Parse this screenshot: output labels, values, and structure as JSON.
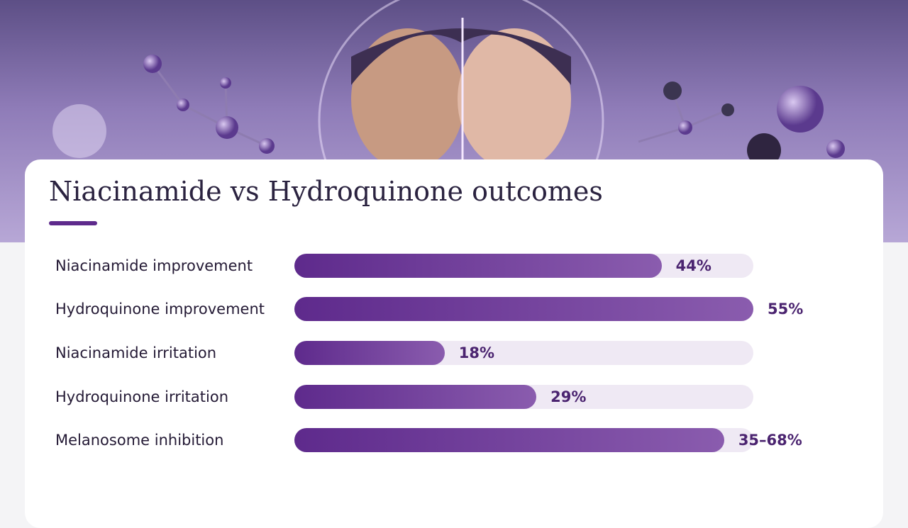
{
  "chart_data": {
    "type": "bar",
    "orientation": "horizontal",
    "title": "Niacinamide vs Hydroquinone outcomes",
    "categories": [
      "Niacinamide improvement",
      "Hydroquinone improvement",
      "Niacinamide irritation",
      "Hydroquinone irritation",
      "Melanosome inhibition"
    ],
    "values": [
      44,
      55,
      18,
      29,
      [
        35,
        68
      ]
    ],
    "value_labels": [
      "44%",
      "55%",
      "18%",
      "29%",
      "35–68%"
    ],
    "xlim": [
      0,
      55
    ],
    "color": "#5e2a8c"
  }
}
